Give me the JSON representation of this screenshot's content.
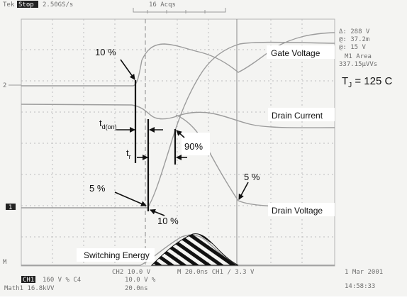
{
  "scope": {
    "header_brand": "Tek",
    "header_mode": "Stop",
    "header_rate": "2.50GS/s",
    "header_acqs": "16 Acqs",
    "readout": [
      "Δ: 288 V",
      "@: 37.2m",
      "@: 15 V",
      "M1 Area",
      "337.15μVVs"
    ],
    "footer_left": [
      "CH1",
      "160 V  % C4",
      "Math1  16.8kVV"
    ],
    "footer_mid": [
      "CH2  10.0 V",
      "10.0 V  %",
      "20.0ns"
    ],
    "footer_right": [
      "M 20.0ns  CH1 ∕  3.3 V",
      "1 Mar 2001",
      "14:58:33"
    ],
    "markers": {
      "ref_2": "2",
      "ref_1": "1",
      "ref_m": "M"
    }
  },
  "annotations": {
    "gate_voltage": "Gate Voltage",
    "drain_current": "Drain Current",
    "drain_voltage": "Drain Voltage",
    "switching_energy": "Switching Energy",
    "tj_main": "T",
    "tj_sub": "J",
    "tj_value": " = 125 C",
    "pct_10_top": "10 %",
    "pct_10_bottom": "10 %",
    "pct_5_left": "5 %",
    "pct_5_right": "5 %",
    "pct_90": "90%",
    "td_main": "t",
    "td_sub": "d(on)",
    "tr_main": "t",
    "tr_sub": "r"
  },
  "colors": {
    "trace": "#9c9c9c",
    "annotation": "#111111",
    "screen": "#f4f4f2"
  }
}
